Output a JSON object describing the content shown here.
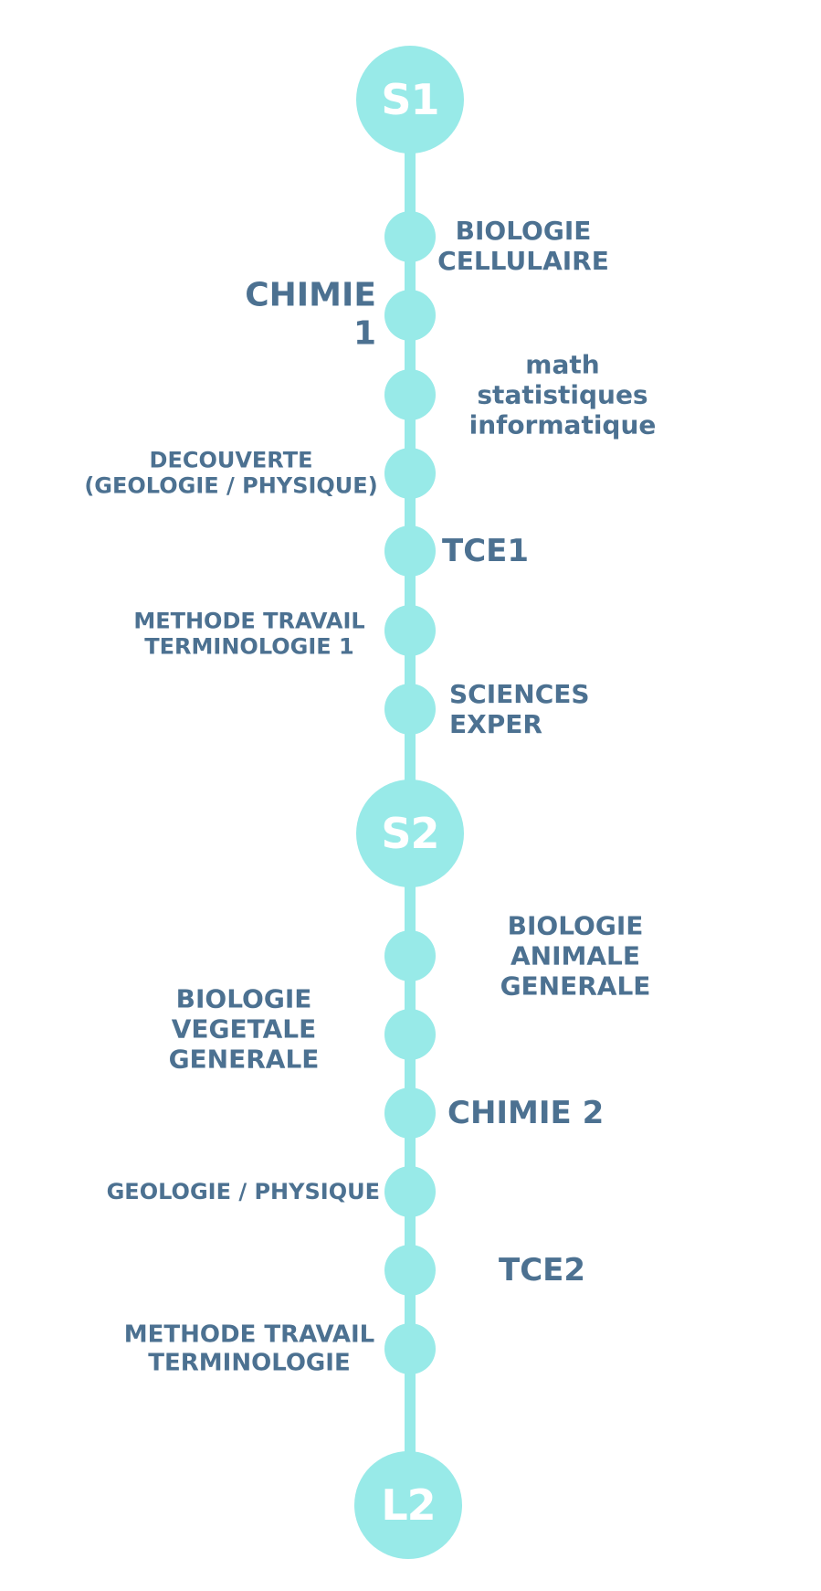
{
  "nodes": {
    "s1": "S1",
    "s2": "S2",
    "l2": "L2"
  },
  "s1_items": {
    "biologie_cellulaire": "BIOLOGIE\nCELLULAIRE",
    "chimie_1": "CHIMIE 1",
    "math_stat_info": "math statistiques\ninformatique",
    "decouverte": "DECOUVERTE\n(GEOLOGIE / PHYSIQUE)",
    "tce1": "TCE1",
    "methode_travail_1": "METHODE TRAVAIL\nTERMINOLOGIE 1",
    "sciences_exper": "SCIENCES EXPER"
  },
  "s2_items": {
    "biologie_animale": "BIOLOGIE ANIMALE\nGENERALE",
    "biologie_vegetale": "BIOLOGIE VEGETALE\nGENERALE",
    "chimie_2": "CHIMIE 2",
    "geologie_physique": "GEOLOGIE / PHYSIQUE",
    "tce2": "TCE2",
    "methode_travail": "METHODE TRAVAIL\nTERMINOLOGIE"
  },
  "colors": {
    "accent": "#98eae8",
    "text": "#4c7191",
    "node_text": "#ffffff"
  }
}
